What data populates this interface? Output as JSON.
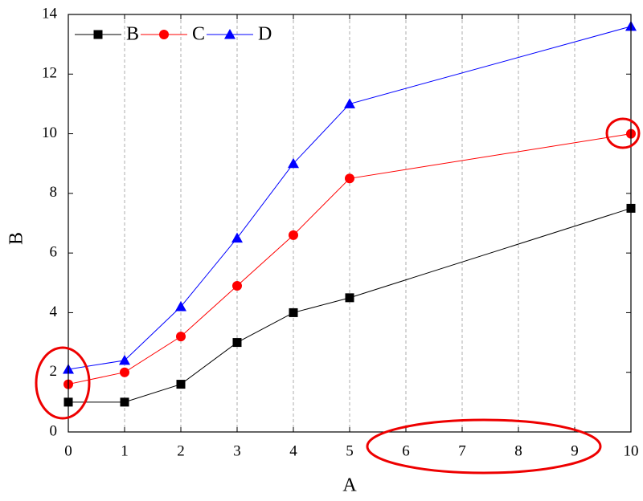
{
  "chart_data": {
    "type": "line",
    "x_label": "A",
    "y_label": "B",
    "x": [
      0,
      1,
      2,
      3,
      4,
      5,
      10
    ],
    "series": [
      {
        "name": "B",
        "color": "#000000",
        "marker": "square",
        "values": [
          1,
          1,
          1.6,
          3,
          4,
          4.5,
          7.5
        ]
      },
      {
        "name": "C",
        "color": "#ff0000",
        "marker": "circle",
        "values": [
          1.6,
          2.0,
          3.2,
          4.9,
          6.6,
          8.5,
          10.0
        ]
      },
      {
        "name": "D",
        "color": "#0000ff",
        "marker": "triangle",
        "values": [
          2.1,
          2.4,
          4.2,
          6.5,
          9.0,
          11.0,
          13.6
        ]
      }
    ],
    "xlim": [
      0,
      10
    ],
    "xticks": [
      0,
      1,
      2,
      3,
      4,
      5,
      6,
      7,
      8,
      9,
      10
    ],
    "ylim": [
      0,
      14
    ],
    "yticks": [
      0,
      2,
      4,
      6,
      8,
      10,
      12,
      14
    ],
    "grid": "x",
    "legend": "top-left"
  }
}
